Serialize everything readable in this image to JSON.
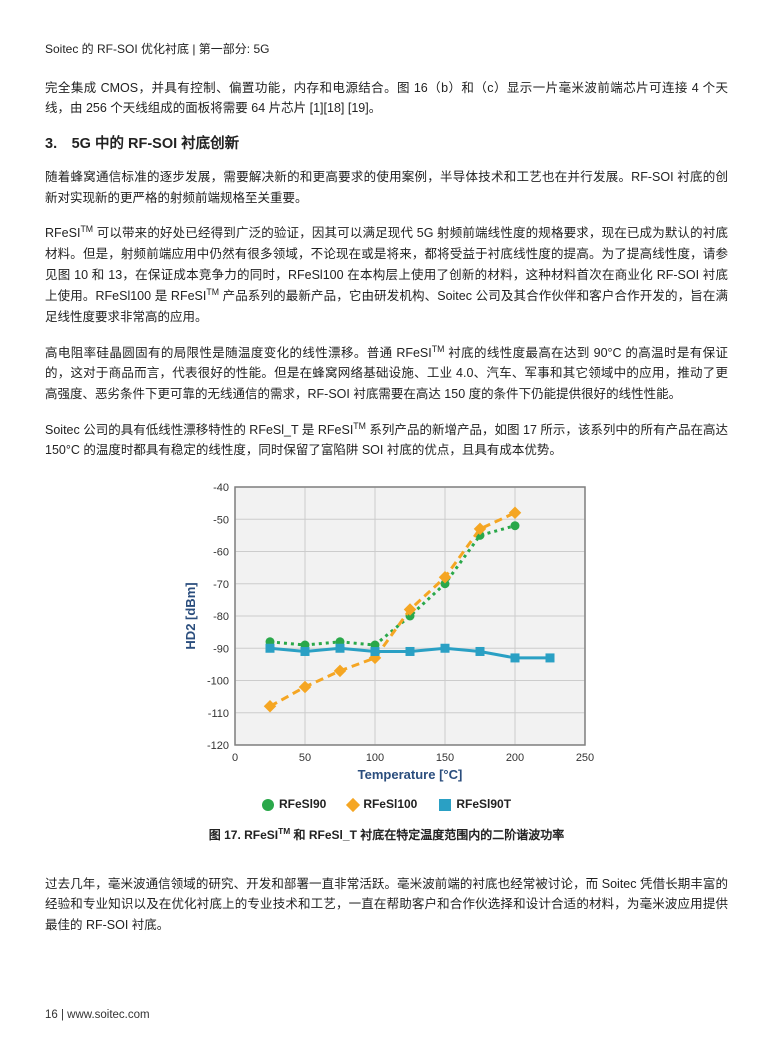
{
  "header": "Soitec 的 RF-SOI 优化衬底 | 第一部分: 5G",
  "para1": "完全集成 CMOS，并具有控制、偏置功能，内存和电源结合。图 16（b）和（c）显示一片毫米波前端芯片可连接 4 个天线，由 256 个天线组成的面板将需要 64 片芯片 [1][18] [19]。",
  "section_heading": "3.　5G 中的 RF-SOI 衬底创新",
  "para2": "随着蜂窝通信标准的逐步发展，需要解决新的和更高要求的使用案例，半导体技术和工艺也在并行发展。RF-SOI 衬底的创新对实现新的更严格的射频前端规格至关重要。",
  "para3_a": "RFeSI",
  "para3_b": " 可以带来的好处已经得到广泛的验证，因其可以满足现代 5G 射频前端线性度的规格要求，现在已成为默认的衬底材料。但是，射频前端应用中仍然有很多领域，不论现在或是将来，都将受益于衬底线性度的提高。为了提高线性度，请参见图 10 和 13，在保证成本竞争力的同时，RFeSl100 在本构层上使用了创新的材料，这种材料首次在商业化 RF-SOI 衬底上使用。RFeSl100 是 RFeSI",
  "para3_c": " 产品系列的最新产品，它由研发机构、Soitec 公司及其合作伙伴和客户合作开发的，旨在满足线性度要求非常高的应用。",
  "para4_a": "高电阻率硅晶圆固有的局限性是随温度变化的线性漂移。普通 RFeSI",
  "para4_b": " 衬底的线性度最高在达到 90°C 的高温时是有保证的，这对于商品而言，代表很好的性能。但是在蜂窝网络基础设施、工业 4.0、汽车、军事和其它领域中的应用，推动了更高强度、恶劣条件下更可靠的无线通信的需求，RF-SOI 衬底需要在高达 150 度的条件下仍能提供很好的线性性能。",
  "para5_a": "Soitec 公司的具有低线性漂移特性的 RFeSl_T 是 RFeSI",
  "para5_b": " 系列产品的新增产品，如图 17 所示，该系列中的所有产品在高达 150°C 的温度时都具有稳定的线性度，同时保留了富陷阱 SOI 衬底的优点，且具有成本优势。",
  "chart": {
    "type": "line",
    "xlabel": "Temperature [°C]",
    "ylabel": "HD2 [dBm]",
    "xlim": [
      0,
      250
    ],
    "ylim": [
      -120,
      -40
    ],
    "xticks": [
      0,
      50,
      100,
      150,
      200,
      250
    ],
    "yticks": [
      -120,
      -110,
      -100,
      -90,
      -80,
      -70,
      -60,
      -50,
      -40
    ],
    "background_color": "#ffffff",
    "plot_bg": "#f2f2f2",
    "grid_color": "#cccccc",
    "border_color": "#7f7f7f",
    "axis_label_color": "#2a4d7d",
    "axis_label_fontsize": 13,
    "tick_fontsize": 11,
    "series": [
      {
        "name": "RFeSl90",
        "color": "#2aa84a",
        "marker": "circle",
        "marker_size": 9,
        "dash": "3,4",
        "line_width": 3,
        "x": [
          25,
          50,
          75,
          100,
          125,
          150,
          175,
          200
        ],
        "y": [
          -88,
          -89,
          -88,
          -89,
          -80,
          -70,
          -55,
          -52
        ]
      },
      {
        "name": "RFeSl100",
        "color": "#f5a623",
        "marker": "diamond",
        "marker_size": 10,
        "dash": "8,5",
        "line_width": 3,
        "x": [
          25,
          50,
          75,
          100,
          125,
          150,
          175,
          200
        ],
        "y": [
          -108,
          -102,
          -97,
          -93,
          -78,
          -68,
          -53,
          -48
        ]
      },
      {
        "name": "RFeSl90T",
        "color": "#2aa0c4",
        "marker": "square",
        "marker_size": 9,
        "dash": "",
        "line_width": 3,
        "x": [
          25,
          50,
          75,
          100,
          125,
          150,
          175,
          200,
          225
        ],
        "y": [
          -90,
          -91,
          -90,
          -91,
          -91,
          -90,
          -91,
          -93,
          -93
        ]
      }
    ],
    "legend_items": [
      "RFeSl90",
      "RFeSl100",
      "RFeSl90T"
    ]
  },
  "fig_caption_a": "图 17. RFeSI",
  "fig_caption_b": " 和 RFeSl_T 衬底在特定温度范围内的二阶谐波功率",
  "para6": "过去几年，毫米波通信领域的研究、开发和部署一直非常活跃。毫米波前端的衬底也经常被讨论，而 Soitec 凭借长期丰富的经验和专业知识以及在优化衬底上的专业技术和工艺，一直在帮助客户和合作伙选择和设计合适的材料，为毫米波应用提供最佳的 RF-SOI 衬底。",
  "footer": "16 | www.soitec.com"
}
